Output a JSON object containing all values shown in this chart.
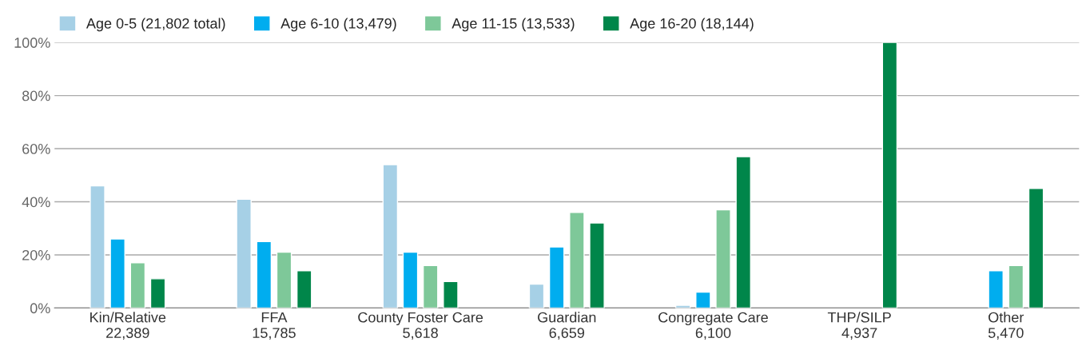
{
  "chart_data": {
    "type": "bar",
    "categories": [
      "Kin/Relative\n22,389",
      "FFA\n15,785",
      "County Foster Care\n5,618",
      "Guardian\n6,659",
      "Congregate Care\n6,100",
      "THP/SILP\n4,937",
      "Other\n5,470"
    ],
    "series": [
      {
        "name": "Age 0-5 (21,802 total)",
        "color": "#a6d0e6",
        "values": [
          46,
          41,
          54,
          9,
          1,
          null,
          null
        ]
      },
      {
        "name": "Age 6-10 (13,479)",
        "color": "#00adef",
        "values": [
          26,
          25,
          21,
          23,
          6,
          null,
          14
        ]
      },
      {
        "name": "Age 11-15 (13,533)",
        "color": "#7ec899",
        "values": [
          17,
          21,
          16,
          36,
          37,
          null,
          16
        ]
      },
      {
        "name": "Age 16-20 (18,144)",
        "color": "#00864a",
        "values": [
          11,
          14,
          10,
          32,
          57,
          100,
          45
        ]
      }
    ],
    "ylim": [
      0,
      100
    ],
    "yticks": [
      {
        "value": 0,
        "label": "0%"
      },
      {
        "value": 20,
        "label": "20%"
      },
      {
        "value": 40,
        "label": "40%"
      },
      {
        "value": 60,
        "label": "60%"
      },
      {
        "value": 80,
        "label": "80%"
      },
      {
        "value": 100,
        "label": "100%"
      }
    ],
    "grid": "y",
    "legend": "top left"
  }
}
